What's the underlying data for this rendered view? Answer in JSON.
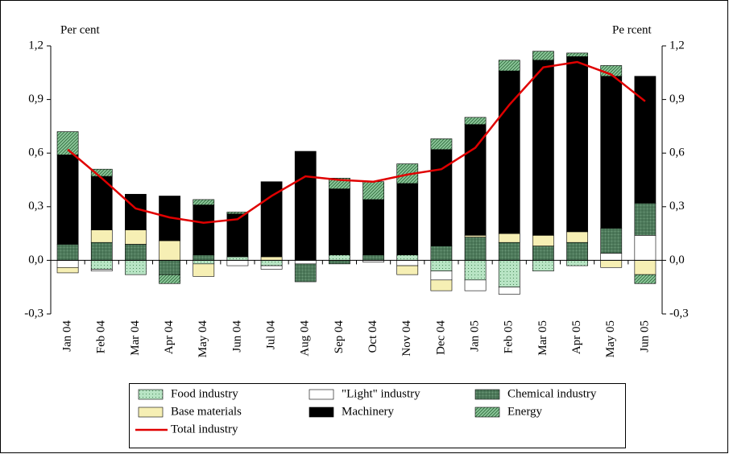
{
  "chart_data": {
    "type": "bar",
    "stacked": true,
    "y_label": "Per cent",
    "y2_label": "Pe rcent",
    "categories": [
      "Jan 04",
      "Feb 04",
      "Mar 04",
      "Apr 04",
      "May 04",
      "Jun 04",
      "Jul 04",
      "Aug 04",
      "Sep 04",
      "Oct 04",
      "Nov 04",
      "Dec 04",
      "Jan 05",
      "Feb 05",
      "Mar 05",
      "Apr 05",
      "May 05",
      "Jun 05"
    ],
    "ylim": [
      -0.3,
      1.2
    ],
    "yticks": [
      {
        "value": -0.3,
        "label": "-0,3"
      },
      {
        "value": 0,
        "label": "0,0"
      },
      {
        "value": 0.3,
        "label": "0,3"
      },
      {
        "value": 0.6,
        "label": "0,6"
      },
      {
        "value": 0.9,
        "label": "0,9"
      },
      {
        "value": 1.2,
        "label": "1,2"
      }
    ],
    "y2lim": [
      -0.3,
      1.2
    ],
    "y2ticks": [
      {
        "value": -0.3,
        "label": "-0,3"
      },
      {
        "value": 0,
        "label": "0,0"
      },
      {
        "value": 0.3,
        "label": "0,3"
      },
      {
        "value": 0.6,
        "label": "0,6"
      },
      {
        "value": 0.9,
        "label": "0,9"
      },
      {
        "value": 1.2,
        "label": "1,2"
      }
    ],
    "series": [
      {
        "name": "Food industry",
        "color": "#b8e4c4",
        "pattern": "dots",
        "values": [
          0,
          -0.05,
          -0.08,
          0,
          -0.02,
          0.02,
          -0.03,
          0,
          0.03,
          0,
          0.03,
          -0.06,
          -0.11,
          -0.15,
          -0.06,
          -0.03,
          0,
          0
        ]
      },
      {
        "name": "\"Light\" industry",
        "color": "#ffffff",
        "pattern": "none",
        "values": [
          -0.04,
          -0.01,
          0,
          0,
          0,
          -0.03,
          -0.02,
          -0.02,
          0,
          -0.01,
          -0.03,
          -0.05,
          -0.06,
          -0.04,
          0,
          0,
          0.04,
          0.14
        ]
      },
      {
        "name": "Chemical industry",
        "color": "#6f9c7c",
        "pattern": "cross",
        "values": [
          0.09,
          0.1,
          0.09,
          -0.08,
          0.03,
          0,
          0,
          -0.1,
          -0.02,
          0.03,
          0,
          0.08,
          0.13,
          0.1,
          0.08,
          0.1,
          0.14,
          0.18
        ]
      },
      {
        "name": "Base materials",
        "color": "#f6efb4",
        "pattern": "none",
        "values": [
          -0.03,
          0.07,
          0.08,
          0.11,
          -0.07,
          0,
          0.02,
          0,
          0,
          0,
          -0.05,
          -0.06,
          0.01,
          0.05,
          0.06,
          0.06,
          -0.04,
          -0.08
        ]
      },
      {
        "name": "Machinery",
        "color": "#000000",
        "pattern": "none",
        "values": [
          0.5,
          0.3,
          0.2,
          0.25,
          0.28,
          0.24,
          0.42,
          0.61,
          0.37,
          0.31,
          0.4,
          0.54,
          0.62,
          0.91,
          0.98,
          0.98,
          0.85,
          0.71
        ]
      },
      {
        "name": "Energy",
        "color": "#8cc79a",
        "pattern": "diagonal",
        "values": [
          0.13,
          0.04,
          0,
          -0.05,
          0.03,
          0.01,
          0,
          0,
          0.06,
          0.1,
          0.11,
          0.06,
          0.04,
          0.06,
          0.05,
          0.02,
          0.06,
          -0.05
        ]
      },
      {
        "name": "Total industry",
        "type": "line",
        "color": "#e00000",
        "values": [
          0.62,
          0.46,
          0.29,
          0.24,
          0.21,
          0.23,
          0.36,
          0.47,
          0.45,
          0.44,
          0.48,
          0.51,
          0.63,
          0.87,
          1.08,
          1.11,
          1.04,
          0.89
        ]
      }
    ]
  }
}
